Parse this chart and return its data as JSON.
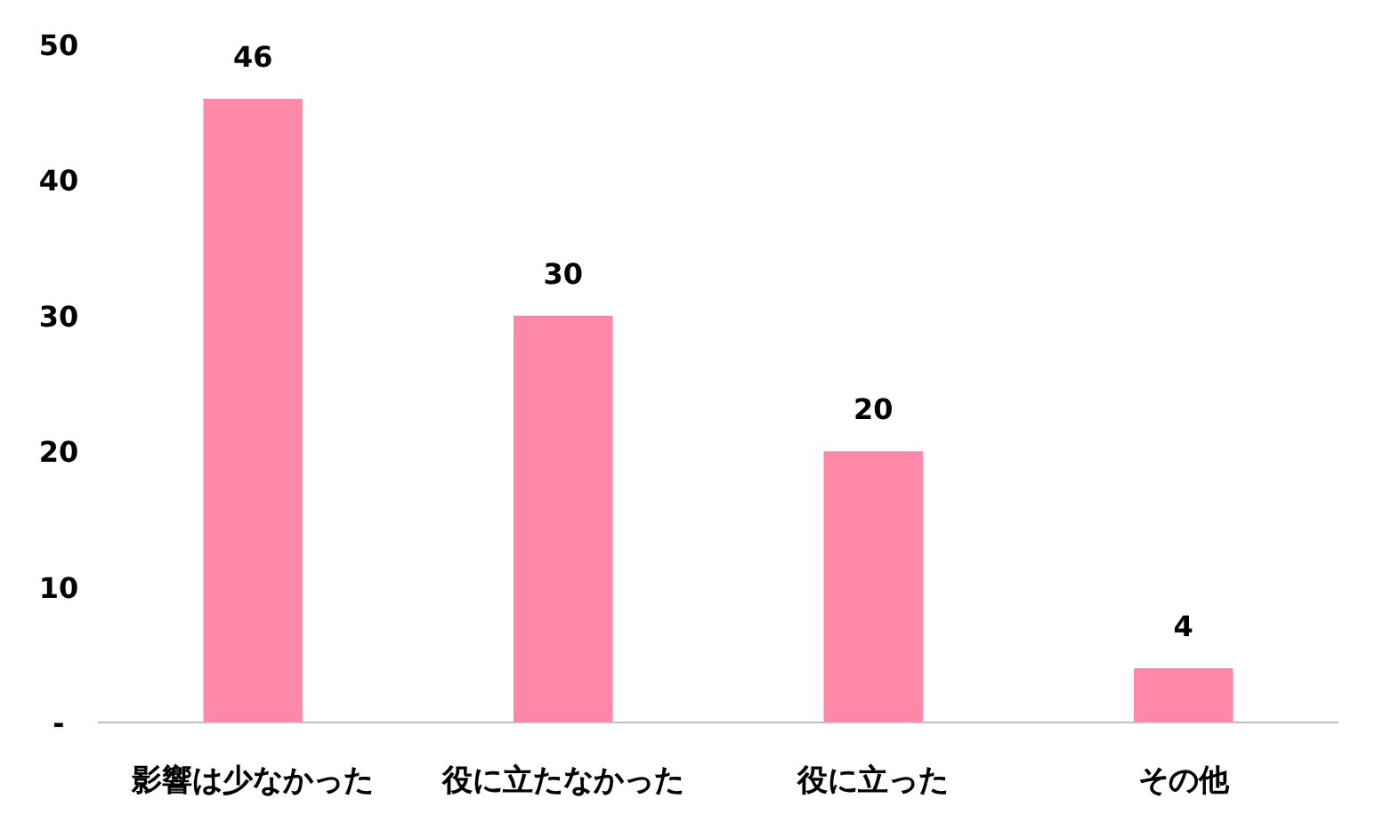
{
  "chart_data": {
    "type": "bar",
    "categories": [
      "影響は少なかった",
      "役に立たなかった",
      "役に立った",
      "その他"
    ],
    "values": [
      46,
      30,
      20,
      4
    ],
    "color": "#ff88a8",
    "ylim": [
      0,
      50
    ],
    "yticks": [
      {
        "value": 0,
        "label": "-"
      },
      10,
      20,
      30,
      40,
      50
    ],
    "data_labels": true
  }
}
